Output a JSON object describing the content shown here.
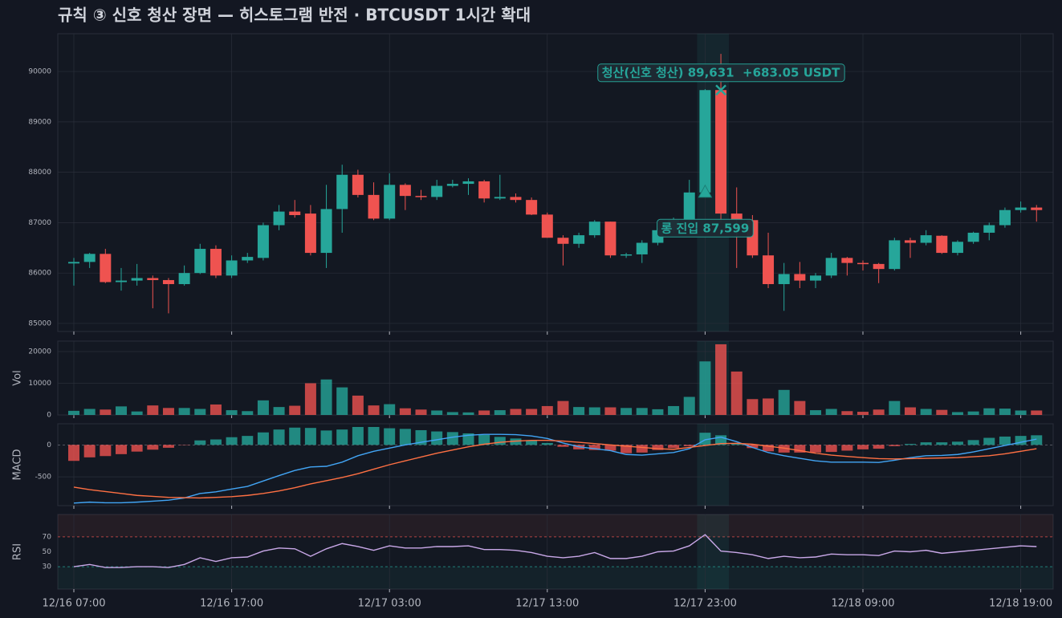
{
  "chart_data": [
    {
      "type": "candlestick",
      "title": "규칙 ③ 신호 청산 장면 — 히스토그램 반전   ·   BTCUSDT 1시간 확대",
      "categories": [
        "12/16 07:00",
        null,
        null,
        null,
        null,
        null,
        null,
        null,
        null,
        null,
        "12/16 17:00",
        null,
        null,
        null,
        null,
        null,
        null,
        null,
        null,
        null,
        "12/17 03:00",
        null,
        null,
        null,
        null,
        null,
        null,
        null,
        null,
        null,
        "12/17 13:00",
        null,
        null,
        null,
        null,
        null,
        null,
        null,
        null,
        null,
        "12/17 23:00",
        null,
        null,
        null,
        null,
        null,
        null,
        null,
        null,
        null,
        "12/18 09:00",
        null,
        null,
        null,
        null,
        null,
        null,
        null,
        null,
        null,
        "12/18 19:00",
        null
      ],
      "open": [
        86190,
        86220,
        86380,
        85820,
        85850,
        85900,
        85860,
        85780,
        86000,
        86480,
        85950,
        86250,
        86300,
        86950,
        87220,
        87180,
        86400,
        87270,
        87950,
        87550,
        87080,
        87750,
        87530,
        87510,
        87730,
        87770,
        87820,
        87480,
        87510,
        87450,
        87160,
        86700,
        86580,
        86750,
        87020,
        86350,
        86370,
        86600,
        86850,
        87050,
        87599,
        89631,
        87180,
        87050,
        86350,
        85780,
        85980,
        85850,
        85950,
        86300,
        86200,
        86180,
        86080,
        86650,
        86600,
        86740,
        86400,
        86620,
        86800,
        86950,
        87250,
        87300
      ],
      "high": [
        86300,
        86400,
        86480,
        86100,
        86180,
        85950,
        85900,
        86150,
        86580,
        86550,
        86350,
        86400,
        87000,
        87350,
        87450,
        87350,
        87750,
        88150,
        88050,
        87800,
        87980,
        87780,
        87650,
        87850,
        87850,
        87880,
        87850,
        87950,
        87580,
        87500,
        87200,
        86750,
        86800,
        87050,
        87020,
        86400,
        86650,
        86900,
        87100,
        87850,
        89650,
        90350,
        87700,
        87150,
        86800,
        86200,
        86220,
        86000,
        86400,
        86320,
        86250,
        86200,
        86700,
        86700,
        86850,
        86750,
        86650,
        86820,
        87000,
        87300,
        87420,
        87350
      ],
      "low": [
        85750,
        86100,
        85800,
        85650,
        85750,
        85300,
        85200,
        85750,
        85980,
        85900,
        85900,
        86200,
        86250,
        86850,
        87100,
        86350,
        86100,
        86800,
        87500,
        87050,
        87050,
        87250,
        87450,
        87450,
        87700,
        87550,
        87400,
        87450,
        87400,
        87150,
        86700,
        86150,
        86500,
        86700,
        86300,
        86300,
        86200,
        86550,
        86800,
        87000,
        87550,
        87000,
        86100,
        86300,
        85700,
        85250,
        85700,
        85700,
        85900,
        85950,
        86050,
        85800,
        86050,
        86300,
        86550,
        86380,
        86350,
        86580,
        86650,
        86900,
        87200,
        87020
      ],
      "close": [
        86220,
        86380,
        85820,
        85850,
        85900,
        85860,
        85780,
        86000,
        86480,
        85950,
        86250,
        86320,
        86950,
        87220,
        87150,
        86400,
        87270,
        87950,
        87550,
        87080,
        87750,
        87530,
        87510,
        87730,
        87770,
        87820,
        87480,
        87510,
        87450,
        87160,
        86700,
        86580,
        86750,
        87020,
        86350,
        86370,
        86600,
        86850,
        87050,
        87599,
        89631,
        87180,
        87050,
        86350,
        85780,
        85980,
        85850,
        85950,
        86300,
        86200,
        86190,
        86080,
        86650,
        86600,
        86750,
        86400,
        86620,
        86800,
        86950,
        87250,
        87300,
        87250
      ],
      "up_color": "#26a69a",
      "down_color": "#ef5350",
      "ylim": [
        84840,
        90750
      ],
      "yticks": [
        85000,
        86000,
        87000,
        88000,
        89000,
        90000
      ],
      "grid": true,
      "annotations": [
        {
          "text": "롱 진입 87,599",
          "price": 87599,
          "marker": "triangle",
          "placement": "below"
        },
        {
          "text": "청산(신호 청산) 89,631  +683.05 USDT",
          "price": 89631,
          "marker": "x",
          "placement": "above"
        }
      ]
    },
    {
      "type": "bar",
      "ylabel": "Vol",
      "values": [
        1300,
        1900,
        1700,
        2700,
        1100,
        3000,
        2200,
        2200,
        1900,
        3300,
        1500,
        1200,
        4600,
        2500,
        2900,
        10000,
        11200,
        8700,
        6100,
        3000,
        3400,
        2100,
        1700,
        1400,
        900,
        800,
        1400,
        1500,
        1900,
        1900,
        2800,
        4400,
        2500,
        2400,
        2400,
        2200,
        2200,
        1800,
        2800,
        5700,
        16900,
        22300,
        13700,
        5000,
        5200,
        7900,
        4400,
        1500,
        1900,
        1200,
        1000,
        1700,
        4400,
        2400,
        1900,
        1600,
        900,
        1100,
        2100,
        2000,
        1400,
        1400
      ],
      "ylim": [
        0,
        23300
      ],
      "yticks": [
        0,
        10000,
        20000
      ],
      "grid": true
    },
    {
      "type": "line",
      "ylabel": "MACD",
      "ylim": [
        -950,
        330
      ],
      "yticks": [
        0,
        -500
      ],
      "grid": true,
      "series": [
        {
          "type": "bar",
          "positive_color": "#26a69a",
          "negative_color": "#ef5350",
          "values": [
            -250,
            -195,
            -175,
            -145,
            -105,
            -75,
            -45,
            -5,
            70,
            85,
            120,
            140,
            195,
            240,
            270,
            265,
            225,
            240,
            280,
            280,
            260,
            250,
            230,
            210,
            200,
            180,
            155,
            125,
            100,
            70,
            30,
            -30,
            -70,
            -80,
            -90,
            -130,
            -120,
            -80,
            -50,
            -20,
            190,
            150,
            25,
            -50,
            -100,
            -120,
            -120,
            -120,
            -110,
            -90,
            -70,
            -60,
            -20,
            15,
            40,
            40,
            50,
            75,
            110,
            130,
            140,
            150
          ]
        },
        {
          "type": "line",
          "color": "#42a5f5",
          "values": [
            -910,
            -895,
            -905,
            -905,
            -895,
            -880,
            -865,
            -830,
            -760,
            -735,
            -690,
            -650,
            -565,
            -480,
            -400,
            -345,
            -335,
            -270,
            -170,
            -100,
            -50,
            0,
            40,
            80,
            120,
            150,
            165,
            165,
            160,
            140,
            100,
            30,
            -30,
            -60,
            -90,
            -150,
            -160,
            -140,
            -120,
            -60,
            80,
            120,
            50,
            -40,
            -120,
            -170,
            -210,
            -250,
            -270,
            -270,
            -270,
            -275,
            -240,
            -200,
            -170,
            -165,
            -150,
            -110,
            -60,
            -10,
            40,
            90
          ]
        },
        {
          "type": "line",
          "color": "#ff7043",
          "values": [
            -660,
            -700,
            -730,
            -760,
            -790,
            -805,
            -820,
            -825,
            -830,
            -820,
            -810,
            -790,
            -760,
            -720,
            -670,
            -610,
            -560,
            -510,
            -450,
            -380,
            -310,
            -250,
            -190,
            -130,
            -80,
            -30,
            10,
            40,
            60,
            70,
            70,
            60,
            40,
            20,
            0,
            -20,
            -40,
            -60,
            -70,
            -40,
            -10,
            20,
            25,
            10,
            -20,
            -50,
            -90,
            -130,
            -160,
            -180,
            -200,
            -215,
            -220,
            -215,
            -210,
            -205,
            -200,
            -185,
            -170,
            -140,
            -100,
            -60
          ]
        }
      ]
    },
    {
      "type": "line",
      "ylabel": "RSI",
      "ylim": [
        0,
        100
      ],
      "yticks": [
        30,
        50,
        70
      ],
      "overbought": 70,
      "oversold": 30,
      "series": [
        {
          "type": "line",
          "color": "#c9a8e8",
          "values": [
            30,
            33,
            29,
            29,
            30,
            30,
            29,
            33,
            42,
            37,
            42,
            43,
            51,
            55,
            54,
            44,
            54,
            61,
            57,
            52,
            58,
            55,
            55,
            57,
            57,
            58,
            53,
            53,
            52,
            49,
            44,
            42,
            44,
            49,
            41,
            41,
            44,
            50,
            51,
            58,
            73,
            51,
            49,
            46,
            41,
            44,
            42,
            43,
            47,
            46,
            46,
            45,
            51,
            50,
            52,
            48,
            50,
            52,
            54,
            56,
            58,
            57
          ]
        }
      ]
    }
  ]
}
